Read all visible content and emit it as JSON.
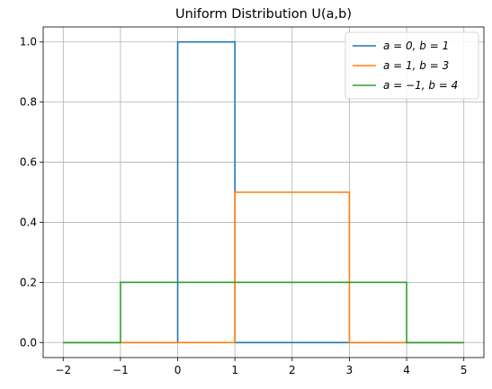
{
  "chart_data": {
    "type": "line",
    "title": "Uniform Distribution U(a,b)",
    "xlabel": "",
    "ylabel": "",
    "xlim": [
      -2.35,
      5.35
    ],
    "ylim": [
      -0.05,
      1.05
    ],
    "xticks": [
      -2,
      -1,
      0,
      1,
      2,
      3,
      4,
      5
    ],
    "xtick_labels": [
      "−2",
      "−1",
      "0",
      "1",
      "2",
      "3",
      "4",
      "5"
    ],
    "yticks": [
      0.0,
      0.2,
      0.4,
      0.6,
      0.8,
      1.0
    ],
    "ytick_labels": [
      "0.0",
      "0.2",
      "0.4",
      "0.6",
      "0.8",
      "1.0"
    ],
    "grid": true,
    "legend_position": "upper-right",
    "series": [
      {
        "name": "a = 0, b = 1",
        "color": "#1f77b4",
        "x": [
          -2,
          0,
          0,
          1,
          1,
          5
        ],
        "y": [
          0,
          0,
          1,
          1,
          0,
          0
        ]
      },
      {
        "name": "a = 1, b = 3",
        "color": "#ff7f0e",
        "x": [
          -2,
          1,
          1,
          3,
          3,
          5
        ],
        "y": [
          0,
          0,
          0.5,
          0.5,
          0,
          0
        ]
      },
      {
        "name": "a = −1, b = 4",
        "color": "#2ca02c",
        "x": [
          -2,
          -1,
          -1,
          4,
          4,
          5
        ],
        "y": [
          0,
          0,
          0.2,
          0.2,
          0,
          0
        ]
      }
    ]
  }
}
